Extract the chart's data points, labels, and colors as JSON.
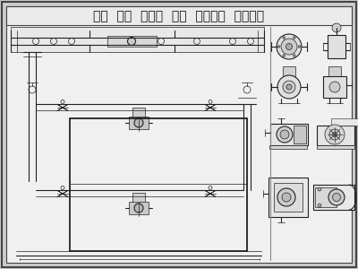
{
  "title": "水泵  管道  离心泵  电泵  工业器材  工业设备",
  "bg_color": "#cccccc",
  "inner_bg": "#f0f0f0",
  "line_color": "#222222",
  "title_fontsize": 10,
  "title_color": "#111111"
}
